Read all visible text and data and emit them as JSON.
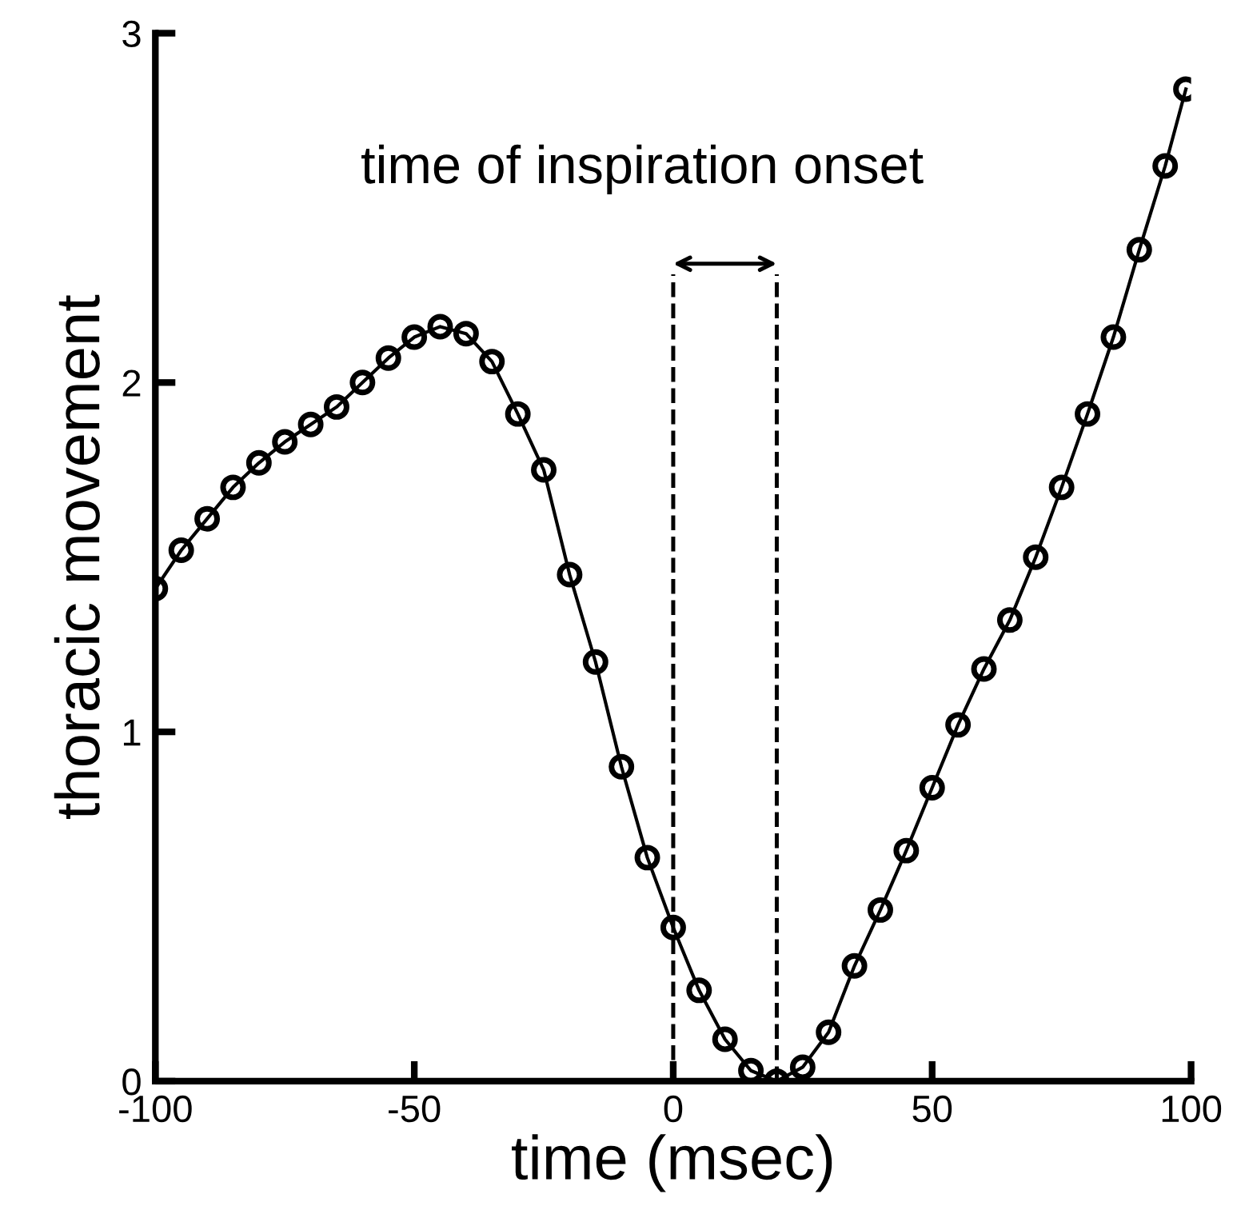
{
  "chart_data": {
    "type": "line",
    "xlabel": "time (msec)",
    "ylabel": "thoracic movement",
    "xlim": [
      -100,
      100
    ],
    "ylim": [
      0,
      3
    ],
    "xticks": [
      -100,
      -50,
      0,
      50,
      100
    ],
    "yticks": [
      0,
      1,
      2,
      3
    ],
    "grid": false,
    "marker": "circle",
    "series": [
      {
        "color": "#000000",
        "x": [
          -100,
          -95,
          -90,
          -85,
          -80,
          -75,
          -70,
          -65,
          -60,
          -55,
          -50,
          -45,
          -40,
          -35,
          -30,
          -25,
          -20,
          -15,
          -10,
          -5,
          0,
          5,
          10,
          15,
          20,
          25,
          30,
          35,
          40,
          45,
          50,
          55,
          60,
          65,
          70,
          75,
          80,
          85,
          90,
          95,
          99
        ],
        "values": [
          1.41,
          1.52,
          1.61,
          1.7,
          1.77,
          1.83,
          1.88,
          1.93,
          2.0,
          2.07,
          2.13,
          2.16,
          2.14,
          2.06,
          1.91,
          1.75,
          1.45,
          1.2,
          0.9,
          0.64,
          0.44,
          0.26,
          0.12,
          0.03,
          0.0,
          0.04,
          0.14,
          0.33,
          0.49,
          0.66,
          0.84,
          1.02,
          1.18,
          1.32,
          1.5,
          1.7,
          1.91,
          2.13,
          2.38,
          2.62,
          2.84
        ]
      }
    ],
    "ref_lines": [
      {
        "axis": "x",
        "value": 0,
        "color": "#000000",
        "line_style": "dashed"
      },
      {
        "axis": "x",
        "value": 20,
        "color": "#000000",
        "line_style": "dashed"
      }
    ],
    "annotations": [
      "time of inspiration onset"
    ]
  }
}
